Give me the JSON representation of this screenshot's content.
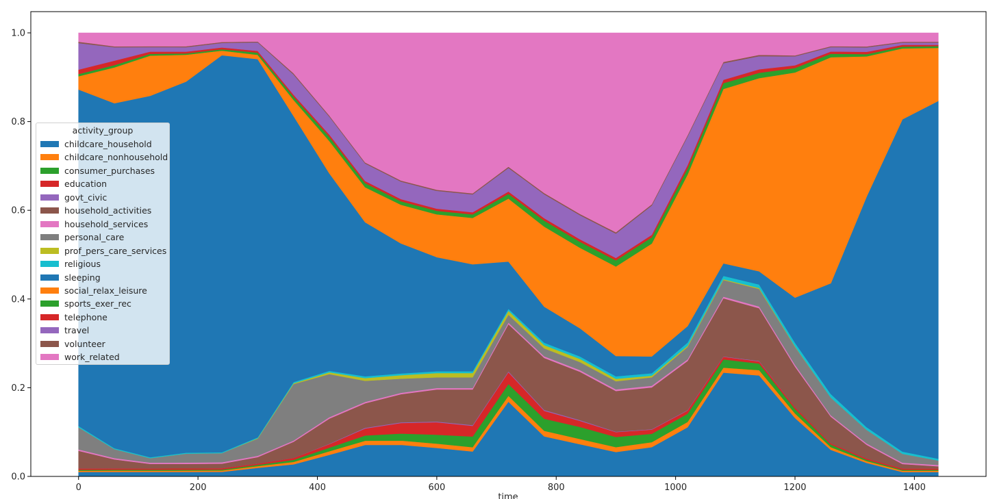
{
  "chart_data": {
    "type": "area",
    "stacked": true,
    "normalized": true,
    "title": "",
    "xlabel": "time",
    "ylabel": "",
    "xlim": [
      -80,
      1520
    ],
    "ylim": [
      0,
      1.0
    ],
    "xticks": [
      0,
      200,
      400,
      600,
      800,
      1000,
      1200,
      1400
    ],
    "yticks": [
      0.0,
      0.2,
      0.4,
      0.6,
      0.8,
      1.0
    ],
    "ytick_labels": [
      "0.0",
      "0.2",
      "0.4",
      "0.6",
      "0.8",
      "1.0"
    ],
    "legend_position": "center-left",
    "legend_title": "activity_group",
    "x": [
      0,
      60,
      120,
      180,
      240,
      300,
      360,
      420,
      480,
      540,
      600,
      660,
      720,
      780,
      840,
      900,
      960,
      1020,
      1080,
      1140,
      1200,
      1260,
      1320,
      1380,
      1440
    ],
    "series": [
      {
        "name": "childcare_household",
        "color": "#1f77b4",
        "values": [
          0.01,
          0.01,
          0.01,
          0.01,
          0.01,
          0.02,
          0.03,
          0.06,
          0.09,
          0.09,
          0.08,
          0.07,
          0.19,
          0.1,
          0.08,
          0.06,
          0.07,
          0.12,
          0.25,
          0.23,
          0.13,
          0.06,
          0.03,
          0.01,
          0.01
        ]
      },
      {
        "name": "childcare_nonhousehold",
        "color": "#ff7f0e",
        "values": [
          0.003,
          0.003,
          0.003,
          0.003,
          0.003,
          0.004,
          0.006,
          0.01,
          0.012,
          0.012,
          0.012,
          0.012,
          0.015,
          0.014,
          0.013,
          0.012,
          0.012,
          0.013,
          0.012,
          0.012,
          0.01,
          0.006,
          0.004,
          0.003,
          0.003
        ]
      },
      {
        "name": "consumer_purchases",
        "color": "#2ca02c",
        "values": [
          0.002,
          0.002,
          0.002,
          0.002,
          0.002,
          0.003,
          0.005,
          0.01,
          0.015,
          0.02,
          0.025,
          0.03,
          0.03,
          0.03,
          0.03,
          0.025,
          0.02,
          0.02,
          0.02,
          0.015,
          0.01,
          0.006,
          0.003,
          0.002,
          0.002
        ]
      },
      {
        "name": "education",
        "color": "#d62728",
        "values": [
          0.003,
          0.003,
          0.003,
          0.003,
          0.003,
          0.003,
          0.005,
          0.01,
          0.02,
          0.03,
          0.035,
          0.03,
          0.03,
          0.02,
          0.015,
          0.012,
          0.01,
          0.008,
          0.006,
          0.005,
          0.004,
          0.003,
          0.003,
          0.003,
          0.003
        ]
      },
      {
        "name": "govt_civic",
        "color": "#9467bd",
        "values": [
          0.0,
          0.0,
          0.0,
          0.0,
          0.0,
          0.0,
          0.0,
          0.001,
          0.002,
          0.002,
          0.002,
          0.002,
          0.002,
          0.002,
          0.002,
          0.001,
          0.001,
          0.001,
          0.001,
          0.001,
          0.0,
          0.0,
          0.0,
          0.0,
          0.0
        ]
      },
      {
        "name": "household_activities",
        "color": "#8c564b",
        "values": [
          0.04,
          0.02,
          0.01,
          0.01,
          0.01,
          0.015,
          0.04,
          0.07,
          0.07,
          0.08,
          0.09,
          0.1,
          0.12,
          0.13,
          0.12,
          0.1,
          0.1,
          0.12,
          0.14,
          0.12,
          0.09,
          0.06,
          0.03,
          0.01,
          0.005
        ]
      },
      {
        "name": "household_services",
        "color": "#e377c2",
        "values": [
          0.003,
          0.003,
          0.003,
          0.003,
          0.003,
          0.003,
          0.003,
          0.004,
          0.004,
          0.004,
          0.004,
          0.004,
          0.004,
          0.004,
          0.004,
          0.004,
          0.004,
          0.004,
          0.004,
          0.004,
          0.004,
          0.003,
          0.003,
          0.003,
          0.003
        ]
      },
      {
        "name": "personal_care",
        "color": "#7f7f7f",
        "values": [
          0.05,
          0.02,
          0.01,
          0.02,
          0.02,
          0.04,
          0.14,
          0.12,
          0.06,
          0.04,
          0.03,
          0.03,
          0.02,
          0.02,
          0.02,
          0.02,
          0.02,
          0.03,
          0.04,
          0.04,
          0.04,
          0.04,
          0.03,
          0.02,
          0.01
        ]
      },
      {
        "name": "prof_pers_care_services",
        "color": "#bcbd22",
        "values": [
          0.0,
          0.0,
          0.0,
          0.0,
          0.0,
          0.001,
          0.002,
          0.005,
          0.008,
          0.01,
          0.012,
          0.012,
          0.01,
          0.008,
          0.008,
          0.006,
          0.004,
          0.003,
          0.002,
          0.002,
          0.001,
          0.0,
          0.0,
          0.0,
          0.0
        ]
      },
      {
        "name": "religious",
        "color": "#17becf",
        "values": [
          0.003,
          0.002,
          0.002,
          0.002,
          0.002,
          0.002,
          0.003,
          0.004,
          0.005,
          0.005,
          0.005,
          0.005,
          0.005,
          0.006,
          0.006,
          0.006,
          0.006,
          0.008,
          0.008,
          0.008,
          0.008,
          0.008,
          0.006,
          0.005,
          0.004
        ]
      },
      {
        "name": "sleeping",
        "color": "#1f77b4",
        "values": [
          0.76,
          0.77,
          0.81,
          0.83,
          0.87,
          0.88,
          0.66,
          0.55,
          0.44,
          0.37,
          0.32,
          0.3,
          0.12,
          0.09,
          0.07,
          0.05,
          0.04,
          0.04,
          0.03,
          0.03,
          0.1,
          0.25,
          0.51,
          0.75,
          0.81
        ]
      },
      {
        "name": "social_relax_leisure",
        "color": "#ff7f0e",
        "values": [
          0.03,
          0.08,
          0.09,
          0.06,
          0.01,
          0.01,
          0.04,
          0.09,
          0.1,
          0.11,
          0.12,
          0.13,
          0.16,
          0.2,
          0.2,
          0.22,
          0.27,
          0.37,
          0.42,
          0.44,
          0.5,
          0.51,
          0.31,
          0.16,
          0.12
        ]
      },
      {
        "name": "sports_exer_rec",
        "color": "#2ca02c",
        "values": [
          0.005,
          0.005,
          0.004,
          0.003,
          0.003,
          0.005,
          0.008,
          0.012,
          0.012,
          0.01,
          0.01,
          0.01,
          0.012,
          0.015,
          0.015,
          0.015,
          0.015,
          0.015,
          0.014,
          0.012,
          0.01,
          0.008,
          0.005,
          0.004,
          0.004
        ]
      },
      {
        "name": "telephone",
        "color": "#d62728",
        "values": [
          0.01,
          0.01,
          0.005,
          0.004,
          0.004,
          0.004,
          0.005,
          0.006,
          0.006,
          0.006,
          0.006,
          0.006,
          0.006,
          0.006,
          0.006,
          0.006,
          0.006,
          0.008,
          0.008,
          0.008,
          0.006,
          0.005,
          0.005,
          0.004,
          0.003
        ]
      },
      {
        "name": "travel",
        "color": "#9467bd",
        "values": [
          0.06,
          0.03,
          0.01,
          0.01,
          0.01,
          0.02,
          0.05,
          0.05,
          0.05,
          0.05,
          0.05,
          0.05,
          0.06,
          0.06,
          0.06,
          0.06,
          0.07,
          0.07,
          0.04,
          0.03,
          0.02,
          0.01,
          0.01,
          0.005,
          0.005
        ]
      },
      {
        "name": "volunteer",
        "color": "#8c564b",
        "values": [
          0.003,
          0.002,
          0.002,
          0.002,
          0.002,
          0.002,
          0.003,
          0.003,
          0.003,
          0.003,
          0.003,
          0.003,
          0.003,
          0.003,
          0.003,
          0.003,
          0.003,
          0.003,
          0.003,
          0.003,
          0.002,
          0.002,
          0.002,
          0.002,
          0.002
        ]
      },
      {
        "name": "work_related",
        "color": "#e377c2",
        "values": [
          0.02,
          0.03,
          0.03,
          0.03,
          0.02,
          0.02,
          0.1,
          0.23,
          0.37,
          0.42,
          0.44,
          0.45,
          0.34,
          0.4,
          0.45,
          0.49,
          0.41,
          0.25,
          0.07,
          0.05,
          0.05,
          0.03,
          0.03,
          0.02,
          0.02
        ]
      }
    ]
  }
}
